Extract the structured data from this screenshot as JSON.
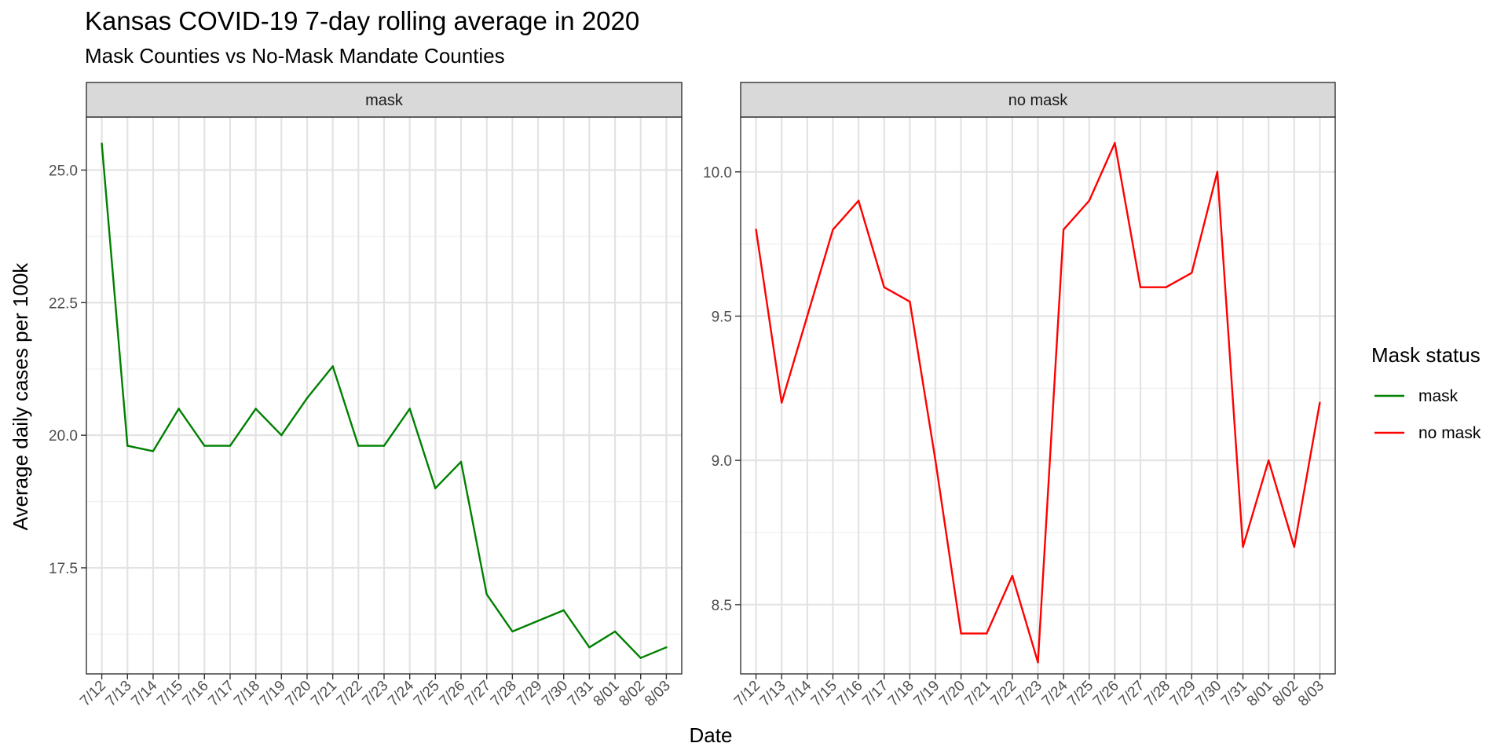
{
  "chart_data": {
    "type": "line",
    "title": "Kansas COVID-19 7-day rolling average in 2020",
    "subtitle": "Mask Counties vs No-Mask Mandate Counties",
    "xlabel": "Date",
    "ylabel": "Average daily cases per 100k",
    "x": [
      "7/12",
      "7/13",
      "7/14",
      "7/15",
      "7/16",
      "7/17",
      "7/18",
      "7/19",
      "7/20",
      "7/21",
      "7/22",
      "7/23",
      "7/24",
      "7/25",
      "7/26",
      "7/27",
      "7/28",
      "7/29",
      "7/30",
      "7/31",
      "8/01",
      "8/02",
      "8/03"
    ],
    "grid": true,
    "legend": {
      "title": "Mask status",
      "position": "right",
      "entries": [
        {
          "label": "mask",
          "color": "#008000"
        },
        {
          "label": "no mask",
          "color": "#ff0000"
        }
      ]
    },
    "panels": [
      {
        "strip": "mask",
        "color": "#008000",
        "ylim": [
          15.5,
          26.0
        ],
        "yticks": [
          17.5,
          20.0,
          22.5,
          25.0
        ],
        "ytick_labels": [
          "17.5",
          "20.0",
          "22.5",
          "25.0"
        ],
        "values": [
          25.5,
          19.8,
          19.7,
          20.5,
          19.8,
          19.8,
          20.5,
          20.0,
          20.7,
          21.3,
          19.8,
          19.8,
          20.5,
          19.0,
          19.5,
          17.0,
          16.3,
          16.5,
          16.7,
          16.0,
          16.3,
          15.8,
          16.0
        ]
      },
      {
        "strip": "no mask",
        "color": "#ff0000",
        "ylim": [
          8.26,
          10.19
        ],
        "yticks": [
          8.5,
          9.0,
          9.5,
          10.0
        ],
        "ytick_labels": [
          "8.5",
          "9.0",
          "9.5",
          "10.0"
        ],
        "values": [
          9.8,
          9.2,
          9.5,
          9.8,
          9.9,
          9.6,
          9.55,
          9.0,
          8.4,
          8.4,
          8.6,
          8.3,
          9.8,
          9.9,
          10.1,
          9.6,
          9.6,
          9.65,
          10.0,
          8.7,
          9.0,
          8.7,
          9.2
        ]
      }
    ]
  }
}
